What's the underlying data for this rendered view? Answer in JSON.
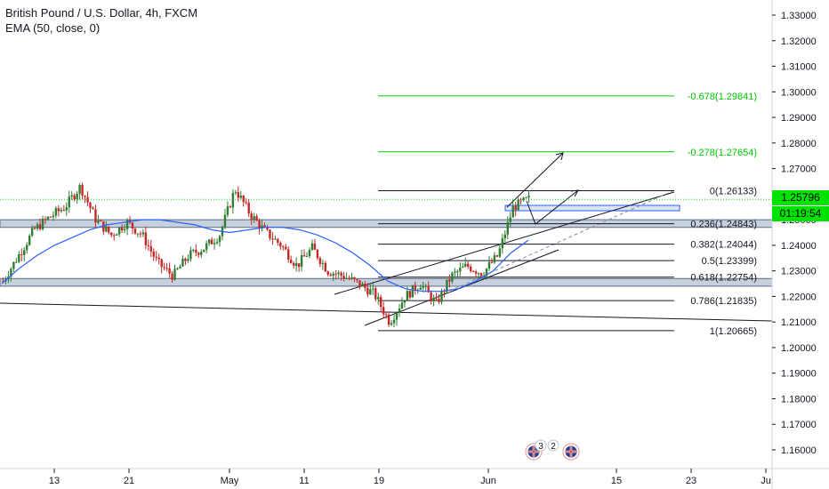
{
  "header": {
    "title": "British Pound / U.S. Dollar, 4h, FXCM",
    "indicator": "EMA (50, close, 0)"
  },
  "price_scale": {
    "ticks": [
      "1.33000",
      "1.32000",
      "1.31000",
      "1.30000",
      "1.29000",
      "1.28000",
      "1.27000",
      "1.26000",
      "1.25000",
      "1.24000",
      "1.23000",
      "1.22000",
      "1.21000",
      "1.20000",
      "1.19000",
      "1.18000",
      "1.17000",
      "1.16000"
    ],
    "current_price": "1.25796",
    "countdown": "01:19:54"
  },
  "time_axis": {
    "labels": [
      "13",
      "21",
      "May",
      "11",
      "19",
      "Jun",
      "15",
      "23",
      "Ju"
    ]
  },
  "fibonacci": {
    "levels": [
      {
        "label": "-0.678(1.29841)",
        "price": 1.29841,
        "color": "#00c400"
      },
      {
        "label": "-0.278(1.27654)",
        "price": 1.27654,
        "color": "#00c400"
      },
      {
        "label": "0(1.26133)",
        "price": 1.26133,
        "color": "#131722"
      },
      {
        "label": "0.236(1.24843)",
        "price": 1.24843,
        "color": "#131722"
      },
      {
        "label": "0.382(1.24044)",
        "price": 1.24044,
        "color": "#131722"
      },
      {
        "label": "0.5(1.23399)",
        "price": 1.23399,
        "color": "#131722"
      },
      {
        "label": "0.618(1.22754)",
        "price": 1.22754,
        "color": "#131722"
      },
      {
        "label": "0.786(1.21835)",
        "price": 1.21835,
        "color": "#131722"
      },
      {
        "label": "1(1.20665)",
        "price": 1.20665,
        "color": "#131722"
      }
    ]
  },
  "event_badges": [
    "3",
    "2"
  ],
  "colors": {
    "up": "#26a69a",
    "up_fill": "#2e7d32",
    "down": "#c62828",
    "ema": "#2962ff",
    "zone_fill": "#c7d0dd",
    "zone_border": "#5c6b7f",
    "green": "#00e300"
  },
  "chart_data": {
    "type": "line",
    "title": "British Pound / U.S. Dollar, 4h, FXCM",
    "xlabel": "",
    "ylabel": "",
    "ylim": [
      1.155,
      1.335
    ],
    "y_ticks": [
      1.33,
      1.32,
      1.31,
      1.3,
      1.29,
      1.28,
      1.27,
      1.26,
      1.25,
      1.24,
      1.23,
      1.22,
      1.21,
      1.2,
      1.19,
      1.18,
      1.17,
      1.16
    ],
    "x_tick_labels": [
      "13",
      "21",
      "May",
      "11",
      "19",
      "Jun",
      "15",
      "23",
      "Ju"
    ],
    "series": [
      {
        "name": "EMA (50, close, 0)",
        "values": [
          1.225,
          1.231,
          1.236,
          1.24,
          1.243,
          1.246,
          1.248,
          1.249,
          1.25,
          1.25,
          1.249,
          1.248,
          1.246,
          1.245,
          1.246,
          1.247,
          1.247,
          1.246,
          1.244,
          1.241,
          1.237,
          1.232,
          1.226,
          1.223,
          1.222,
          1.222,
          1.223,
          1.226,
          1.23,
          1.237,
          1.242
        ]
      },
      {
        "name": "",
        "values": [
          1.226,
          1.236,
          1.246,
          1.251,
          1.255,
          1.263,
          1.25,
          1.244,
          1.249,
          1.244,
          1.233,
          1.228,
          1.236,
          1.239,
          1.244,
          1.262,
          1.252,
          1.245,
          1.24,
          1.232,
          1.239,
          1.23,
          1.228,
          1.225,
          1.221,
          1.21,
          1.22,
          1.225,
          1.217,
          1.228,
          1.232,
          1.229,
          1.236,
          1.255,
          1.258
        ]
      }
    ],
    "horizontal_levels": [
      1.25796
    ],
    "zones": [
      [
        1.247,
        1.25
      ],
      [
        1.224,
        1.227
      ]
    ],
    "fib_levels": [
      1.29841,
      1.27654,
      1.26133,
      1.24843,
      1.24044,
      1.23399,
      1.22754,
      1.21835,
      1.20665
    ],
    "grid": false,
    "legend": "top-left"
  }
}
